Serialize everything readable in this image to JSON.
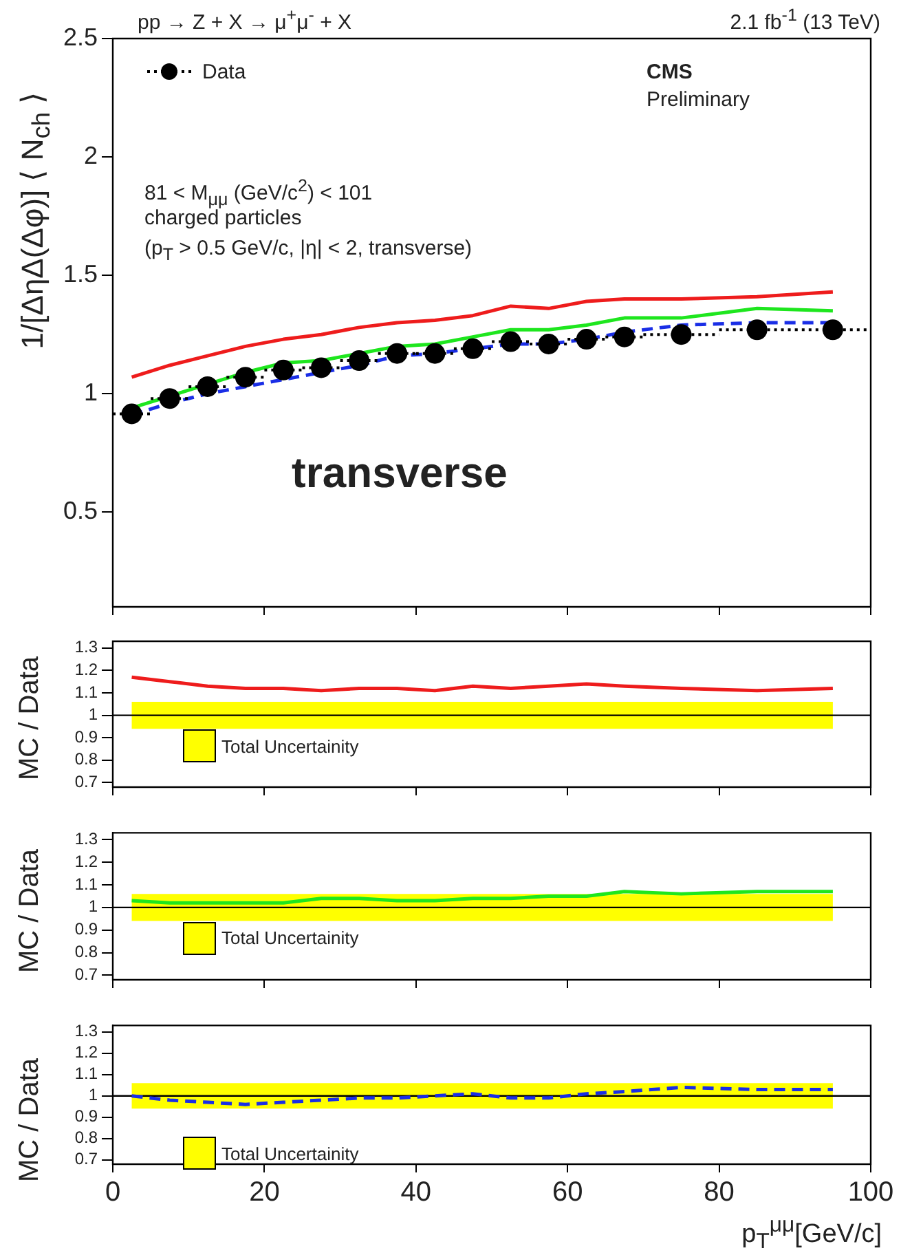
{
  "chart_data": [
    {
      "type": "line",
      "title": "pp → Z + X → μ$^{+}$μ$^{-}$ + X",
      "subtitle": "2.1 fb$^{-1}$ (13 TeV)",
      "ylabel": "1/[ΔηΔ(Δφ)] ⟨ N$_{ch}$ ⟩",
      "annotations": [
        "CMS",
        "Preliminary",
        "81 < M$_{μμ}$ (GeV/c$^{2}$) < 101",
        "charged particles",
        "(p$_{T}$ > 0.5 GeV/c, |η| < 2, transverse)",
        "transverse"
      ],
      "x": [
        2.5,
        7.5,
        12.5,
        17.5,
        22.5,
        27.5,
        32.5,
        37.5,
        42.5,
        47.5,
        52.5,
        57.5,
        62.5,
        67.5,
        75,
        85,
        95
      ],
      "series": [
        {
          "name": "Data",
          "type": "scatter",
          "color": "#000000",
          "marker": "circle",
          "values": [
            0.915,
            0.98,
            1.03,
            1.07,
            1.1,
            1.11,
            1.14,
            1.17,
            1.17,
            1.19,
            1.22,
            1.21,
            1.23,
            1.24,
            1.25,
            1.27,
            1.27
          ],
          "errors": [
            0.04,
            0.04,
            0.04,
            0.04,
            0.04,
            0.04,
            0.04,
            0.04,
            0.04,
            0.04,
            0.04,
            0.04,
            0.04,
            0.04,
            0.04,
            0.04,
            0.04
          ],
          "xerrors": [
            2.5,
            2.5,
            2.5,
            2.5,
            2.5,
            2.5,
            2.5,
            2.5,
            2.5,
            2.5,
            2.5,
            2.5,
            2.5,
            2.5,
            5,
            5,
            5
          ]
        },
        {
          "color": "#1a2ee6",
          "line_style": "dashed",
          "values": [
            0.91,
            0.96,
            1.0,
            1.03,
            1.06,
            1.09,
            1.12,
            1.16,
            1.17,
            1.19,
            1.21,
            1.21,
            1.23,
            1.26,
            1.29,
            1.3,
            1.3
          ]
        },
        {
          "color": "#1ee61e",
          "values": [
            0.94,
            null,
            1.04,
            1.09,
            1.13,
            1.14,
            1.17,
            1.2,
            1.21,
            1.24,
            1.27,
            1.27,
            1.29,
            1.32,
            1.32,
            1.36,
            1.35
          ]
        },
        {
          "color": "#ee1c1c",
          "values": [
            1.07,
            1.12,
            1.16,
            1.2,
            1.23,
            1.25,
            1.28,
            1.3,
            1.31,
            1.33,
            1.37,
            1.36,
            1.39,
            1.4,
            1.4,
            1.41,
            1.43
          ]
        }
      ],
      "xlim": [
        0,
        100
      ],
      "xticks": [
        0,
        20,
        40,
        60,
        80,
        100
      ],
      "ylim": [
        0.1,
        2.5
      ],
      "yticks": [
        0.5,
        1,
        1.5,
        2,
        2.5
      ],
      "tick_labels": "y",
      "legend": "top left",
      "grid": false
    },
    {
      "type": "line",
      "ylabel": "MC / Data",
      "x": [
        2.5,
        7.5,
        12.5,
        17.5,
        22.5,
        27.5,
        32.5,
        37.5,
        42.5,
        47.5,
        52.5,
        57.5,
        62.5,
        67.5,
        75,
        85,
        95
      ],
      "series": [
        {
          "color": "#ee1c1c",
          "values": [
            1.17,
            1.15,
            1.13,
            1.12,
            1.12,
            1.11,
            1.12,
            1.12,
            1.11,
            1.13,
            1.12,
            1.13,
            1.14,
            1.13,
            1.12,
            1.11,
            1.12
          ]
        }
      ],
      "bands": [
        {
          "axis": "y",
          "from": 0.94,
          "to": 1.06,
          "label": "Total Uncertainity",
          "color": "#ffff00"
        }
      ],
      "ref_lines": [
        {
          "axis": "y",
          "value": 1,
          "color": "#000000"
        }
      ],
      "xlim": [
        0,
        100
      ],
      "xticks": [
        0,
        20,
        40,
        60,
        80,
        100
      ],
      "ylim": [
        0.68,
        1.33
      ],
      "yticks": [
        0.7,
        0.8,
        0.9,
        1,
        1.1,
        1.2,
        1.3
      ],
      "tick_labels": "y",
      "grid": false
    },
    {
      "type": "line",
      "ylabel": "MC / Data",
      "x": [
        2.5,
        7.5,
        12.5,
        17.5,
        22.5,
        27.5,
        32.5,
        37.5,
        42.5,
        47.5,
        52.5,
        57.5,
        62.5,
        67.5,
        75,
        85,
        95
      ],
      "series": [
        {
          "color": "#1ee61e",
          "values": [
            1.03,
            1.02,
            1.02,
            1.02,
            1.02,
            1.04,
            1.04,
            1.03,
            1.03,
            1.04,
            1.04,
            1.05,
            1.05,
            1.07,
            1.06,
            1.07,
            1.07
          ]
        }
      ],
      "bands": [
        {
          "axis": "y",
          "from": 0.94,
          "to": 1.06,
          "label": "Total Uncertainity",
          "color": "#ffff00"
        }
      ],
      "ref_lines": [
        {
          "axis": "y",
          "value": 1,
          "color": "#000000"
        }
      ],
      "xlim": [
        0,
        100
      ],
      "xticks": [
        0,
        20,
        40,
        60,
        80,
        100
      ],
      "ylim": [
        0.68,
        1.33
      ],
      "yticks": [
        0.7,
        0.8,
        0.9,
        1,
        1.1,
        1.2,
        1.3
      ],
      "tick_labels": "y",
      "grid": false
    },
    {
      "type": "line",
      "ylabel": "MC / Data",
      "xlabel": "p$_{T}$$^{μμ}$[GeV/c]",
      "x": [
        2.5,
        7.5,
        12.5,
        17.5,
        22.5,
        27.5,
        32.5,
        37.5,
        42.5,
        47.5,
        52.5,
        57.5,
        62.5,
        67.5,
        75,
        85,
        95
      ],
      "series": [
        {
          "color": "#1a2ee6",
          "line_style": "dashed",
          "values": [
            1.0,
            0.98,
            0.97,
            0.96,
            0.97,
            0.98,
            0.99,
            0.99,
            1.0,
            1.01,
            0.99,
            0.99,
            1.01,
            1.02,
            1.04,
            1.03,
            1.03
          ]
        }
      ],
      "bands": [
        {
          "axis": "y",
          "from": 0.94,
          "to": 1.06,
          "label": "Total Uncertainity",
          "color": "#ffff00"
        }
      ],
      "ref_lines": [
        {
          "axis": "y",
          "value": 1,
          "color": "#000000"
        }
      ],
      "xlim": [
        0,
        100
      ],
      "xticks": [
        0,
        20,
        40,
        60,
        80,
        100
      ],
      "ylim": [
        0.68,
        1.33
      ],
      "yticks": [
        0.7,
        0.8,
        0.9,
        1,
        1.1,
        1.2,
        1.3
      ],
      "grid": false
    }
  ]
}
